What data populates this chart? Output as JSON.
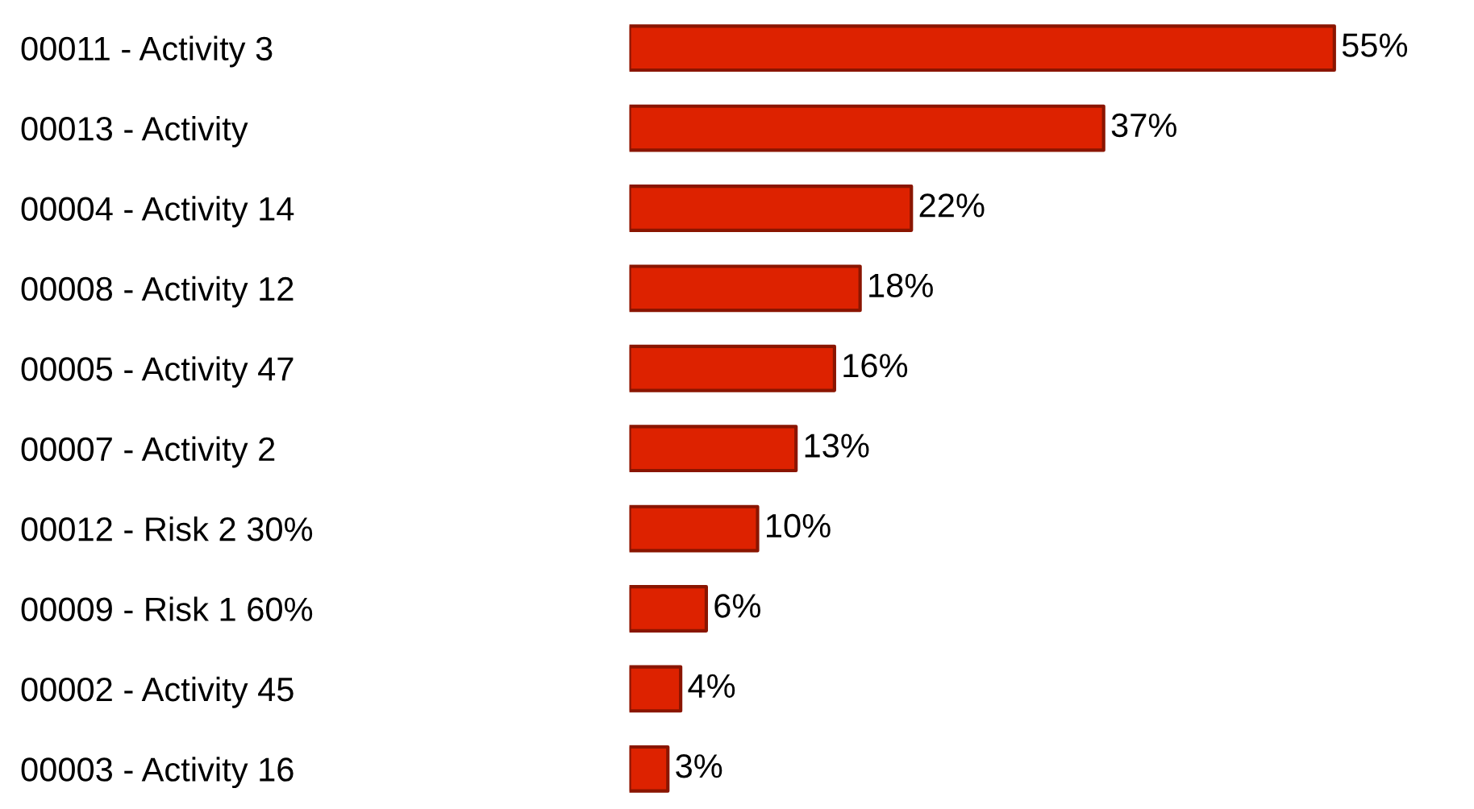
{
  "chart_data": {
    "type": "bar",
    "orientation": "horizontal",
    "categories": [
      "00011 - Activity 3",
      "00013 - Activity",
      "00004 - Activity 14",
      "00008 - Activity 12",
      "00005 - Activity 47",
      "00007 - Activity 2",
      "00012 - Risk 2 30%",
      "00009 - Risk 1 60%",
      "00002 - Activity 45",
      "00003 - Activity 16"
    ],
    "values": [
      55,
      37,
      22,
      18,
      16,
      13,
      10,
      6,
      4,
      3
    ],
    "value_labels": [
      "55%",
      "37%",
      "22%",
      "18%",
      "16%",
      "13%",
      "10%",
      "6%",
      "4%",
      "3%"
    ],
    "color": "#dd2200",
    "grid": false,
    "legend": false
  }
}
